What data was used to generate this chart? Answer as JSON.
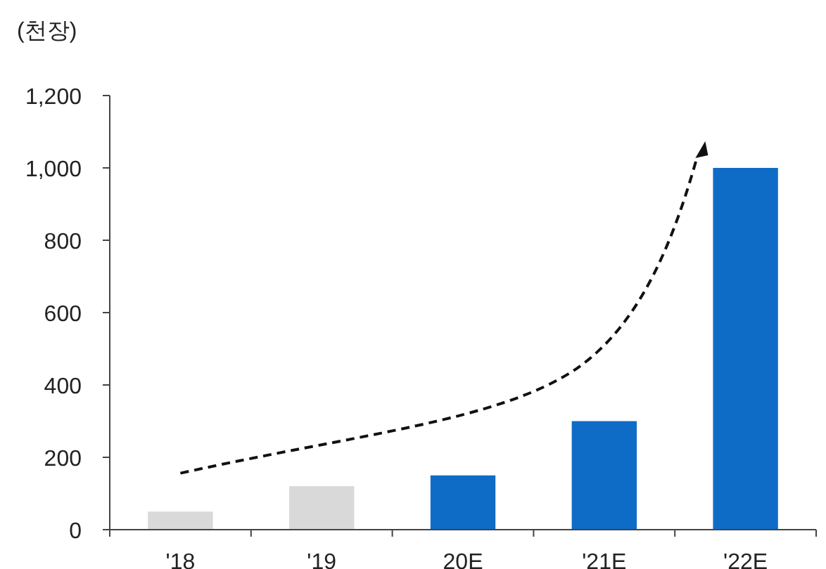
{
  "chart_data": {
    "type": "bar",
    "ylabel": "(천장)",
    "categories": [
      "'18",
      "'19",
      "20E",
      "'21E",
      "'22E"
    ],
    "values": [
      50,
      120,
      150,
      300,
      1000
    ],
    "colors": [
      "#d9d9d9",
      "#d9d9d9",
      "#0f6cc6",
      "#0f6cc6",
      "#0f6cc6"
    ],
    "ylim": [
      0,
      1200
    ],
    "yticks": [
      0,
      200,
      400,
      600,
      800,
      {
        "value": 1000,
        "label": "1,000"
      },
      {
        "value": 1200,
        "label": "1,200"
      }
    ]
  }
}
